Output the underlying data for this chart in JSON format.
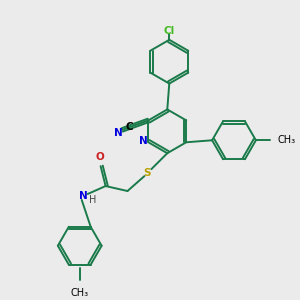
{
  "background_color": "#ebebeb",
  "bond_color": "#1a7a4a",
  "atom_colors": {
    "N": "#0000dd",
    "O": "#cc2020",
    "S": "#b8a000",
    "Cl": "#44bb22",
    "C": "#000000",
    "H": "#444444"
  },
  "figsize": [
    3.0,
    3.0
  ],
  "dpi": 100,
  "lw": 1.4,
  "ring_r": 20,
  "font_size": 7.5
}
